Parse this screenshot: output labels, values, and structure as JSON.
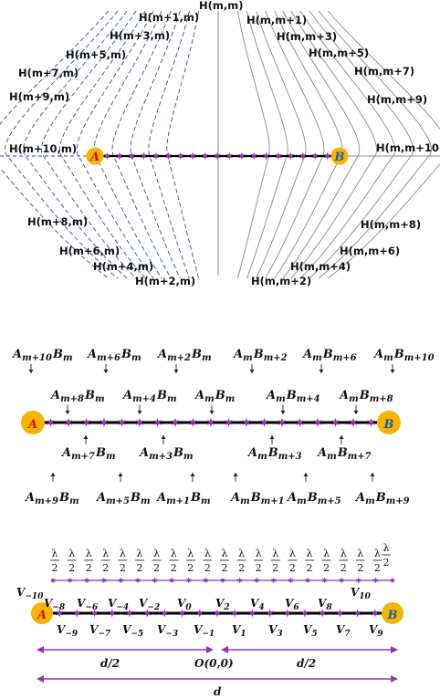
{
  "panel1": {
    "field_labels_left": [
      "H(m+1,m)",
      "H(m+3,m)",
      "H(m+5,m)",
      "H(m+7,m)",
      "H(m+9,m)",
      "H(m+10,m)",
      "H(m+8,m)",
      "H(m+6,m)",
      "H(m+4,m)",
      "H(m+2,m)"
    ],
    "field_labels_right": [
      "H(m,m+1)",
      "H(m,m+3)",
      "H(m,m+5)",
      "H(m,m+7)",
      "H(m,m+9)",
      "H(m,m+10)",
      "H(m,m+8)",
      "H(m,m+6)",
      "H(m,m+4)",
      "H(m,m+2)"
    ],
    "center_label": "H(m,m)",
    "point_a": "A",
    "point_b": "B"
  },
  "panel2": {
    "point_a": "A",
    "point_b": "B",
    "row1": [
      {
        "a": "A",
        "asub": "m+10",
        "b": "B",
        "bsub": "m"
      },
      {
        "a": "A",
        "asub": "m+6",
        "b": "B",
        "bsub": "m"
      },
      {
        "a": "A",
        "asub": "m+2",
        "b": "B",
        "bsub": "m"
      },
      {
        "a": "A",
        "asub": "m",
        "b": "B",
        "bsub": "m+2"
      },
      {
        "a": "A",
        "asub": "m",
        "b": "B",
        "bsub": "m+6"
      },
      {
        "a": "A",
        "asub": "m",
        "b": "B",
        "bsub": "m+10"
      }
    ],
    "row2": [
      {
        "a": "A",
        "asub": "m+8",
        "b": "B",
        "bsub": "m"
      },
      {
        "a": "A",
        "asub": "m+4",
        "b": "B",
        "bsub": "m"
      },
      {
        "a": "A",
        "asub": "m",
        "b": "B",
        "bsub": "m"
      },
      {
        "a": "A",
        "asub": "m",
        "b": "B",
        "bsub": "m+4"
      },
      {
        "a": "A",
        "asub": "m",
        "b": "B",
        "bsub": "m+8"
      }
    ],
    "row3": [
      {
        "a": "A",
        "asub": "m+7",
        "b": "B",
        "bsub": "m"
      },
      {
        "a": "A",
        "asub": "m+3",
        "b": "B",
        "bsub": "m"
      },
      {
        "a": "A",
        "asub": "m",
        "b": "B",
        "bsub": "m+3"
      },
      {
        "a": "A",
        "asub": "m",
        "b": "B",
        "bsub": "m+7"
      }
    ],
    "row4": [
      {
        "a": "A",
        "asub": "m+9",
        "b": "B",
        "bsub": "m"
      },
      {
        "a": "A",
        "asub": "m+5",
        "b": "B",
        "bsub": "m"
      },
      {
        "a": "A",
        "asub": "m+1",
        "b": "B",
        "bsub": "m"
      },
      {
        "a": "A",
        "asub": "m",
        "b": "B",
        "bsub": "m+1"
      },
      {
        "a": "A",
        "asub": "m",
        "b": "B",
        "bsub": "m+5"
      },
      {
        "a": "A",
        "asub": "m",
        "b": "B",
        "bsub": "m+9"
      }
    ]
  },
  "panel3": {
    "lambda_num": "λ",
    "lambda_den": "2",
    "point_a": "A",
    "point_b": "B",
    "v_top": [
      {
        "sym": "V",
        "sub": "−10"
      },
      {
        "sym": "V",
        "sub": "−8"
      },
      {
        "sym": "V",
        "sub": "−6"
      },
      {
        "sym": "V",
        "sub": "−4"
      },
      {
        "sym": "V",
        "sub": "−2"
      },
      {
        "sym": "V",
        "sub": "0"
      },
      {
        "sym": "V",
        "sub": "2"
      },
      {
        "sym": "V",
        "sub": "4"
      },
      {
        "sym": "V",
        "sub": "6"
      },
      {
        "sym": "V",
        "sub": "8"
      },
      {
        "sym": "V",
        "sub": "10"
      }
    ],
    "v_bottom": [
      {
        "sym": "V",
        "sub": "−9"
      },
      {
        "sym": "V",
        "sub": "−7"
      },
      {
        "sym": "V",
        "sub": "−5"
      },
      {
        "sym": "V",
        "sub": "−3"
      },
      {
        "sym": "V",
        "sub": "−1"
      },
      {
        "sym": "V",
        "sub": "1"
      },
      {
        "sym": "V",
        "sub": "3"
      },
      {
        "sym": "V",
        "sub": "5"
      },
      {
        "sym": "V",
        "sub": "7"
      },
      {
        "sym": "V",
        "sub": "9"
      }
    ],
    "half_left": "d/2",
    "half_right": "d/2",
    "origin": "O(0,0)",
    "total": "d"
  },
  "colors": {
    "dashed_lines": "#2f4f9a",
    "solid_lines": "#888888",
    "node_fill": "#f5b400",
    "label_a": "#d01010",
    "label_b": "#1f5fa8",
    "purple": "#8b3aa8",
    "rod": "#000000"
  }
}
